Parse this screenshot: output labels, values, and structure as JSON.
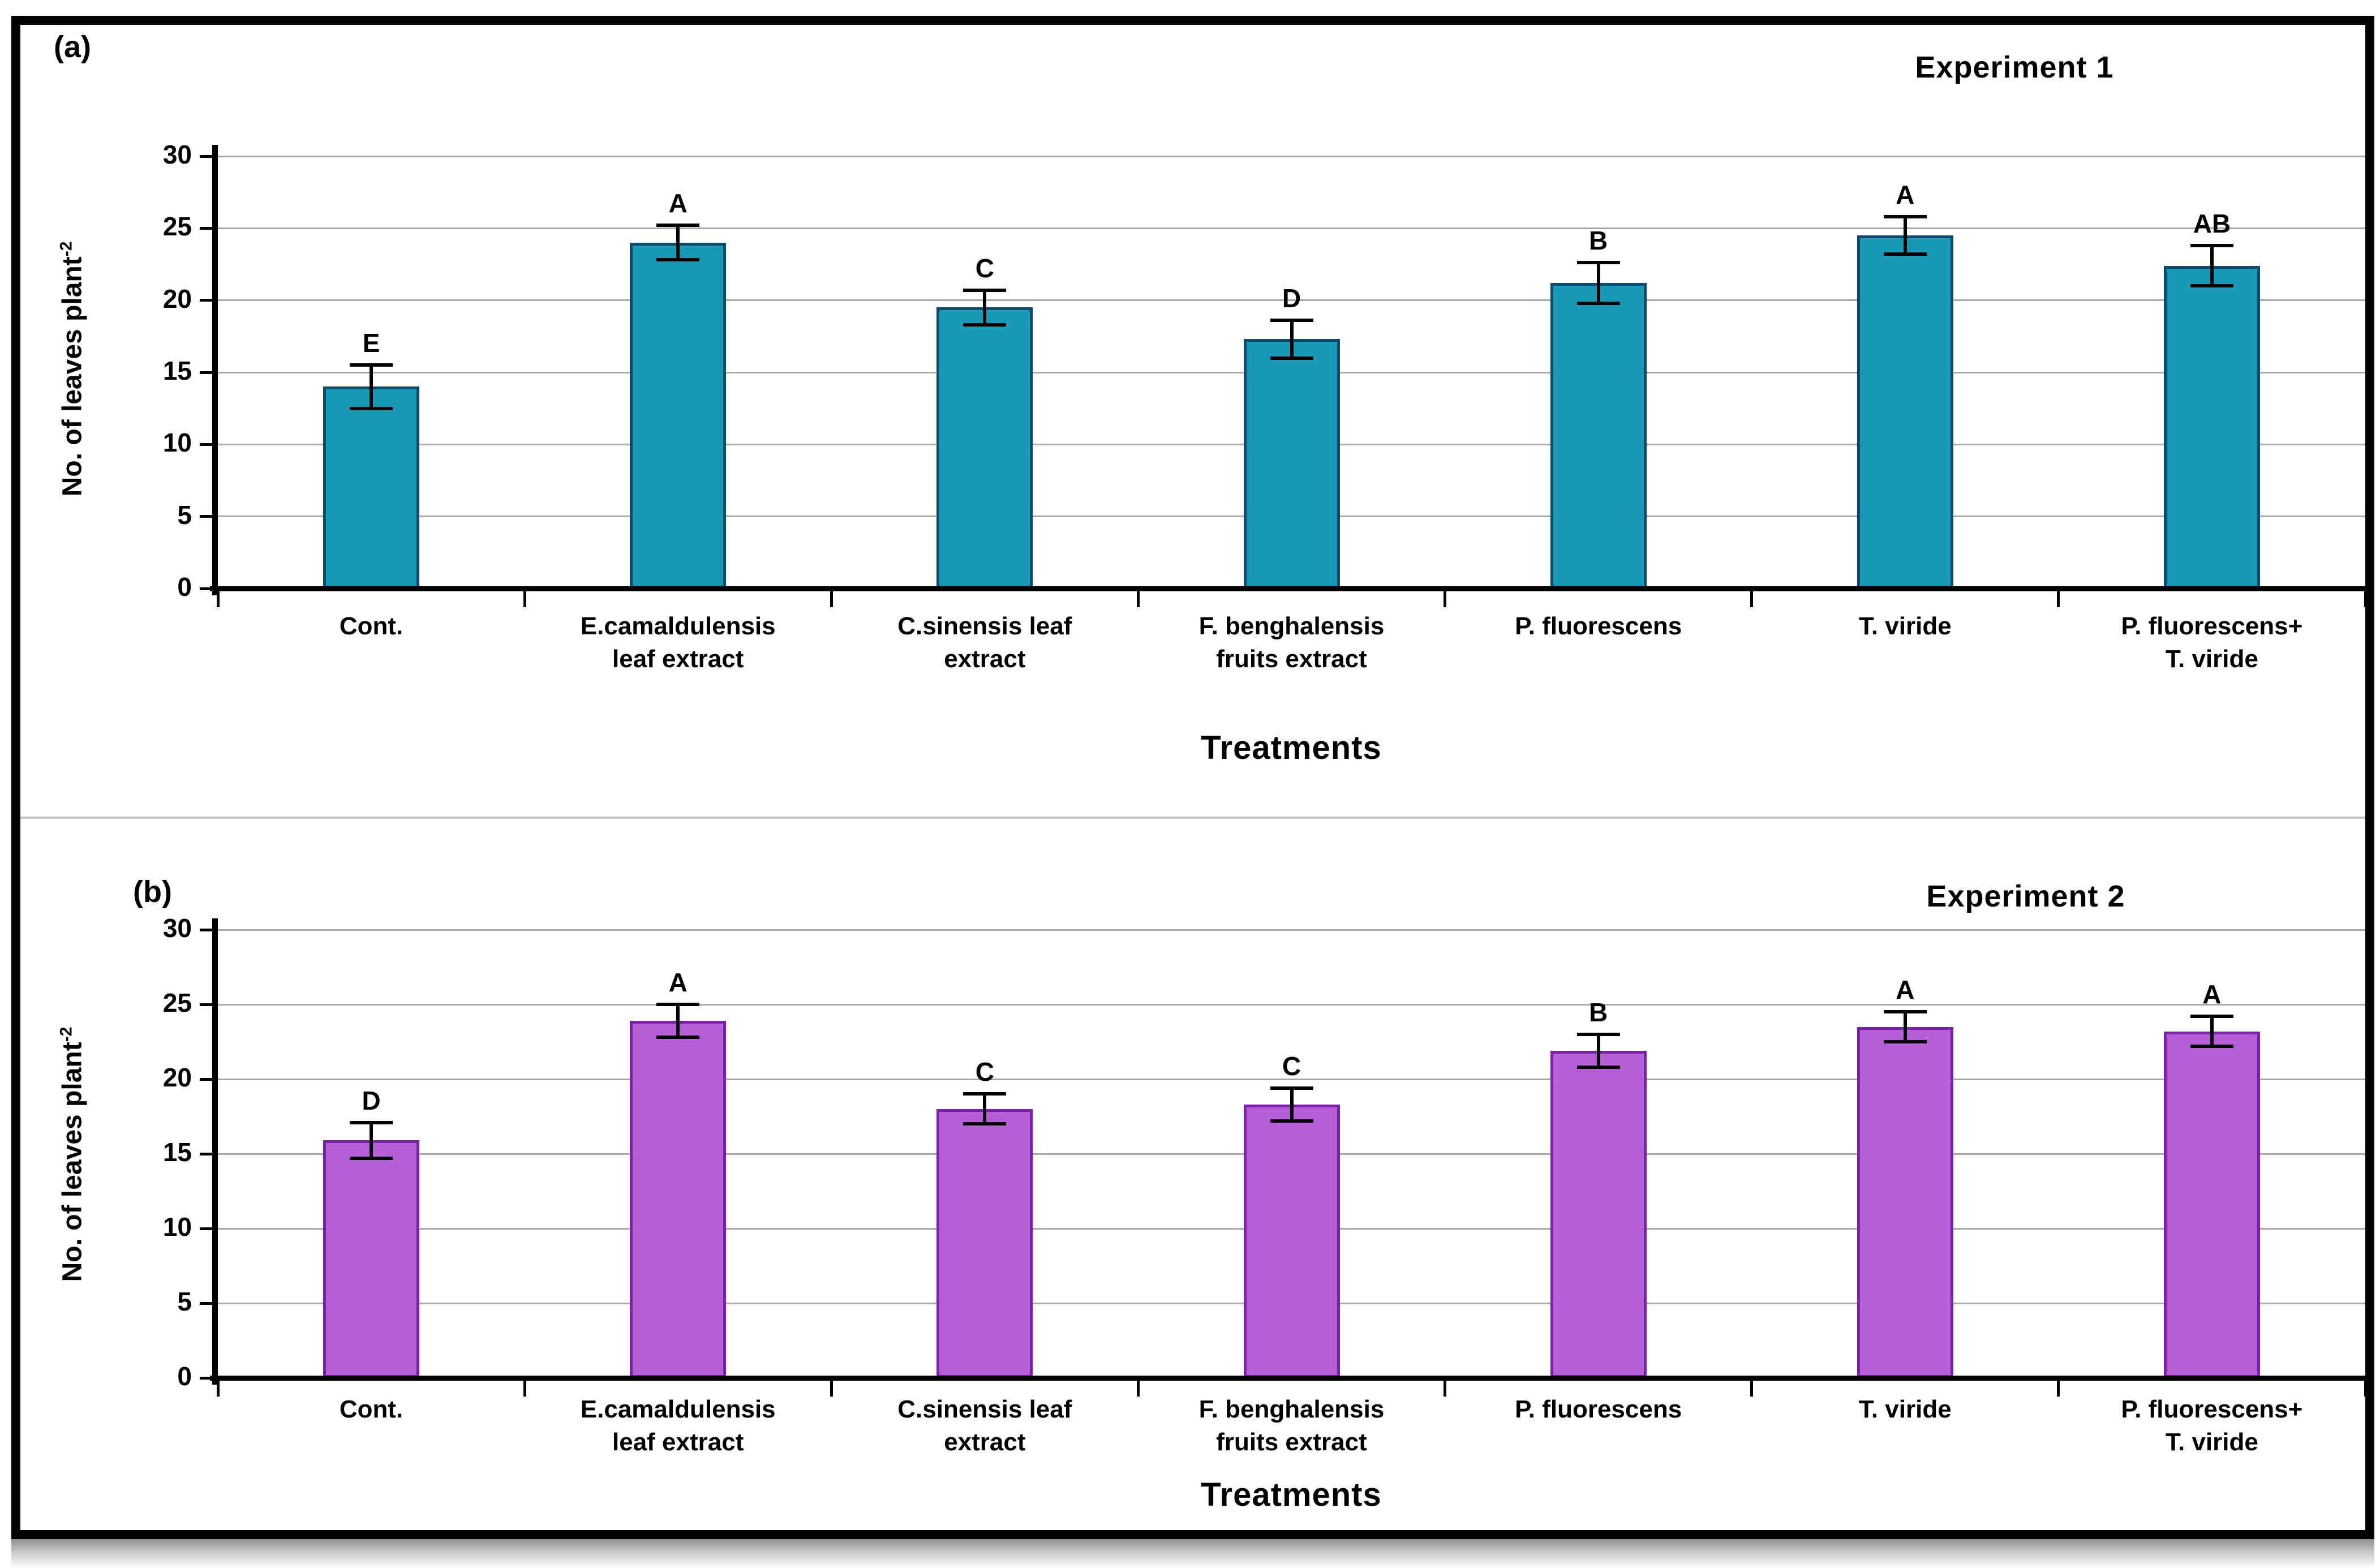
{
  "figure": {
    "y_axis_label_text": "No. of leaves plant",
    "y_axis_label_sup": "-2"
  },
  "colors": {
    "teal_fill": "#1899b6",
    "teal_border": "#0c4a70",
    "purple_fill": "#b55fd8",
    "purple_border": "#7c22a6",
    "gridline": "#a9a9a9",
    "axis": "#000000",
    "divider": "#c8c8c8"
  },
  "chart_data": [
    {
      "type": "bar",
      "panel_label": "(a)",
      "title": "Experiment 1",
      "xlabel": "Treatments",
      "ylabel": "No. of leaves plant⁻²",
      "ylim": [
        0,
        30
      ],
      "y_ticks": [
        0,
        5,
        10,
        15,
        20,
        25,
        30
      ],
      "grid": true,
      "legend": "none",
      "categories": [
        "Cont.",
        "E.camaldulensis leaf extract",
        "C.sinensis leaf extract",
        "F. benghalensis fruits extract",
        "P. fluorescens",
        "T. viride",
        "P. fluorescens+ T. viride"
      ],
      "category_lines": [
        [
          "Cont."
        ],
        [
          "E.camaldulensis",
          "leaf extract"
        ],
        [
          "C.sinensis leaf",
          "extract"
        ],
        [
          "F. benghalensis",
          "fruits extract"
        ],
        [
          "P. fluorescens"
        ],
        [
          "T. viride"
        ],
        [
          "P. fluorescens+",
          "T. viride"
        ]
      ],
      "values": [
        14.0,
        24.0,
        19.5,
        17.3,
        21.2,
        24.5,
        22.4
      ],
      "errors": [
        1.5,
        1.2,
        1.2,
        1.3,
        1.4,
        1.3,
        1.4
      ],
      "letters": [
        "E",
        "A",
        "C",
        "D",
        "B",
        "A",
        "AB"
      ],
      "bar_fill": "#1899b6",
      "bar_border": "#0c4a70"
    },
    {
      "type": "bar",
      "panel_label": "(b)",
      "title": "Experiment 2",
      "xlabel": "Treatments",
      "ylabel": "No. of leaves plant⁻²",
      "ylim": [
        0,
        30
      ],
      "y_ticks": [
        0,
        5,
        10,
        15,
        20,
        25,
        30
      ],
      "grid": true,
      "legend": "none",
      "categories": [
        "Cont.",
        "E.camaldulensis leaf extract",
        "C.sinensis leaf extract",
        "F. benghalensis fruits extract",
        "P. fluorescens",
        "T. viride",
        "P. fluorescens+ T. viride"
      ],
      "category_lines": [
        [
          "Cont."
        ],
        [
          "E.camaldulensis",
          "leaf extract"
        ],
        [
          "C.sinensis leaf",
          "extract"
        ],
        [
          "F. benghalensis",
          "fruits extract"
        ],
        [
          "P. fluorescens"
        ],
        [
          "T. viride"
        ],
        [
          "P. fluorescens+",
          "T. viride"
        ]
      ],
      "values": [
        15.9,
        23.9,
        18.0,
        18.3,
        21.9,
        23.5,
        23.2
      ],
      "errors": [
        1.2,
        1.1,
        1.0,
        1.1,
        1.1,
        1.0,
        1.0
      ],
      "letters": [
        "D",
        "A",
        "C",
        "C",
        "B",
        "A",
        "A"
      ],
      "bar_fill": "#b55fd8",
      "bar_border": "#7c22a6"
    }
  ]
}
